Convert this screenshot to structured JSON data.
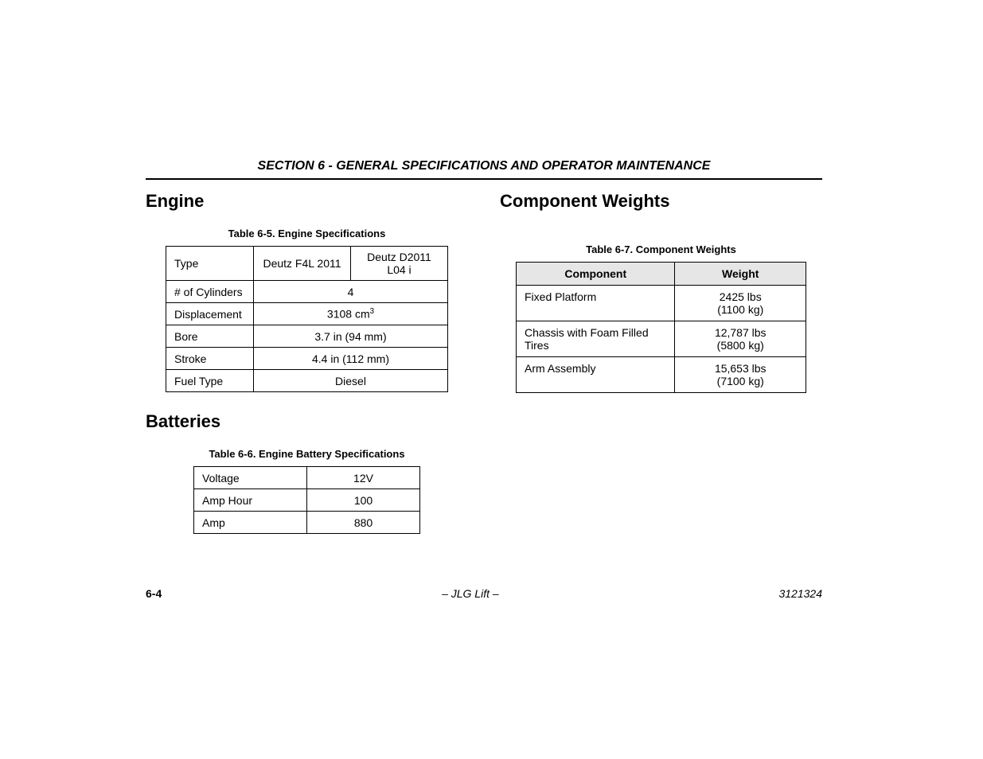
{
  "sectionTitle": "SECTION 6 - GENERAL SPECIFICATIONS AND OPERATOR MAINTENANCE",
  "headings": {
    "engine": "Engine",
    "batteries": "Batteries",
    "componentWeights": "Component Weights"
  },
  "engineTable": {
    "caption": "Table 6-5.   Engine Specifications",
    "rows": [
      {
        "label": "Type",
        "split": true,
        "val1": "Deutz F4L 2011",
        "val2": "Deutz D2011 L04 i"
      },
      {
        "label": "# of Cylinders",
        "split": false,
        "val": "4"
      },
      {
        "label": "Displacement",
        "split": false,
        "val": "3108 cm",
        "sup": "3"
      },
      {
        "label": "Bore",
        "split": false,
        "val": "3.7 in (94 mm)"
      },
      {
        "label": "Stroke",
        "split": false,
        "val": "4.4 in (112 mm)"
      },
      {
        "label": "Fuel Type",
        "split": false,
        "val": "Diesel"
      }
    ]
  },
  "batteryTable": {
    "caption": "Table 6-6.   Engine Battery Specifications",
    "rows": [
      {
        "label": "Voltage",
        "val": "12V"
      },
      {
        "label": "Amp Hour",
        "val": "100"
      },
      {
        "label": "Amp",
        "val": "880"
      }
    ]
  },
  "weightsTable": {
    "caption": "Table 6-7.   Component Weights",
    "headers": {
      "component": "Component",
      "weight": "Weight"
    },
    "rows": [
      {
        "component": "Fixed Platform",
        "weight": "2425 lbs",
        "weightSub": "(1100 kg)"
      },
      {
        "component": "Chassis with Foam Filled Tires",
        "weight": "12,787 lbs",
        "weightSub": "(5800 kg)"
      },
      {
        "component": "Arm Assembly",
        "weight": "15,653 lbs",
        "weightSub": "(7100 kg)"
      }
    ]
  },
  "footer": {
    "pageNum": "6-4",
    "center": "– JLG Lift –",
    "docNum": "3121324"
  },
  "colors": {
    "background": "#ffffff",
    "text": "#000000",
    "tableHeaderBg": "#e6e6e6",
    "border": "#000000"
  }
}
